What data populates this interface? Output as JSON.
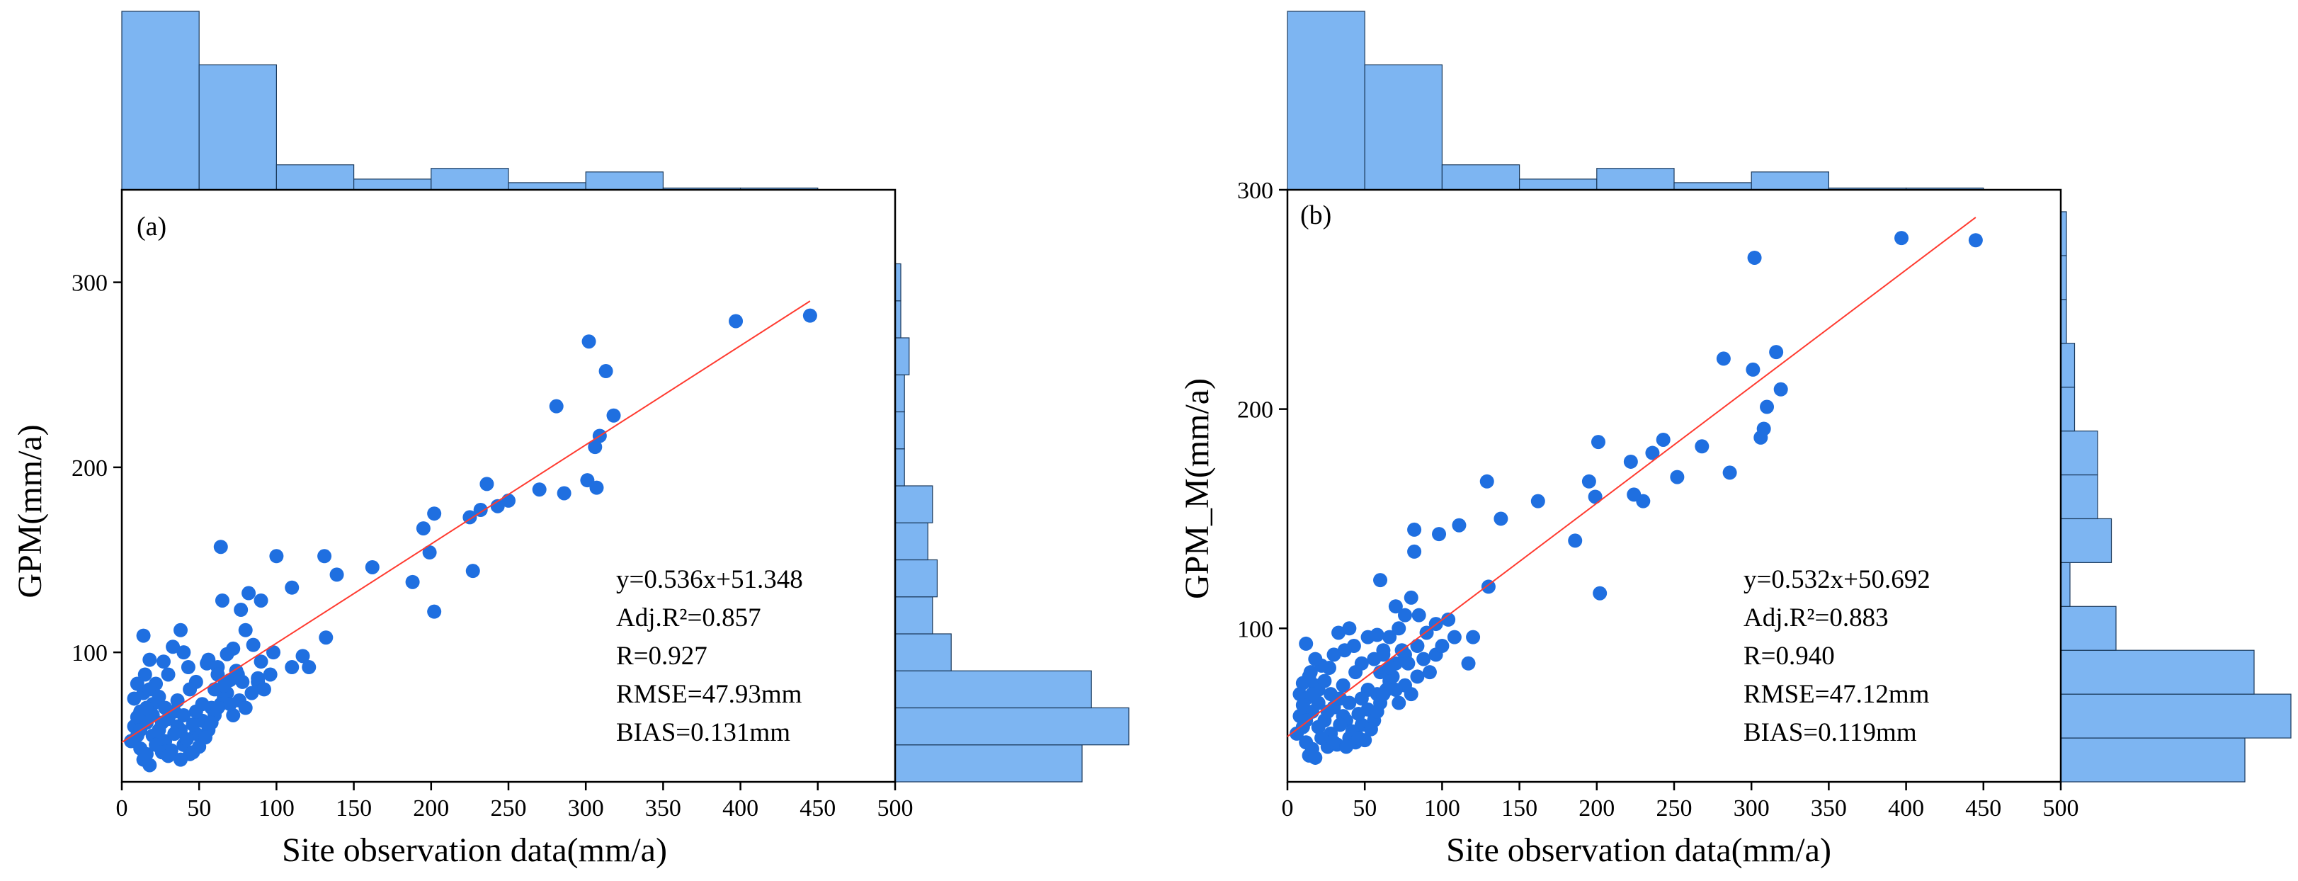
{
  "colors": {
    "point": "#1f6fe0",
    "fit_line": "#ff3b30",
    "hist_fill": "#7db5f2",
    "hist_edge": "#1b3a5c",
    "axis": "#000000"
  },
  "chart_data": [
    {
      "type": "scatter",
      "panel_label": "(a)",
      "xlabel": "Site observation data(mm/a)",
      "ylabel": "GPM(mm/a)",
      "xlim": [
        0,
        500
      ],
      "ylim": [
        30,
        350
      ],
      "xticks": [
        0,
        50,
        100,
        150,
        200,
        250,
        300,
        350,
        400,
        450,
        500
      ],
      "yticks": [
        100,
        200,
        300
      ],
      "fit": {
        "slope": 0.536,
        "intercept": 51.348,
        "x_range": [
          0,
          445
        ]
      },
      "stats": [
        "y=0.536x+51.348",
        "Adj.R²=0.857",
        "R=0.927",
        "RMSE=47.93mm",
        "BIAS=0.131mm"
      ],
      "x_hist": {
        "bin_edges": [
          0,
          50,
          100,
          150,
          200,
          250,
          300,
          350,
          400,
          450
        ],
        "counts": [
          100,
          70,
          14,
          6,
          12,
          4,
          10,
          1,
          1
        ]
      },
      "y_hist": {
        "bin_edges": [
          30,
          50,
          70,
          90,
          110,
          130,
          150,
          170,
          190,
          210,
          230,
          250,
          270,
          290,
          310
        ],
        "counts": [
          40,
          50,
          42,
          12,
          8,
          9,
          7,
          8,
          2,
          2,
          2,
          3,
          1,
          1
        ]
      },
      "points": [
        [
          445,
          282
        ],
        [
          397,
          279
        ],
        [
          302,
          268
        ],
        [
          313,
          252
        ],
        [
          281,
          233
        ],
        [
          318,
          228
        ],
        [
          309,
          217
        ],
        [
          306,
          211
        ],
        [
          236,
          191
        ],
        [
          301,
          193
        ],
        [
          307,
          189
        ],
        [
          270,
          188
        ],
        [
          286,
          186
        ],
        [
          250,
          182
        ],
        [
          243,
          179
        ],
        [
          232,
          177
        ],
        [
          225,
          173
        ],
        [
          202,
          175
        ],
        [
          195,
          167
        ],
        [
          199,
          154
        ],
        [
          188,
          138
        ],
        [
          227,
          144
        ],
        [
          202,
          122
        ],
        [
          162,
          146
        ],
        [
          139,
          142
        ],
        [
          131,
          152
        ],
        [
          110,
          135
        ],
        [
          100,
          152
        ],
        [
          82,
          132
        ],
        [
          64,
          157
        ],
        [
          90,
          128
        ],
        [
          77,
          123
        ],
        [
          65,
          128
        ],
        [
          132,
          108
        ],
        [
          117,
          98
        ],
        [
          121,
          92
        ],
        [
          110,
          92
        ],
        [
          88,
          84
        ],
        [
          90,
          95
        ],
        [
          98,
          100
        ],
        [
          85,
          104
        ],
        [
          80,
          112
        ],
        [
          72,
          102
        ],
        [
          68,
          99
        ],
        [
          55,
          94
        ],
        [
          62,
          92
        ],
        [
          70,
          85
        ],
        [
          75,
          88
        ],
        [
          60,
          80
        ],
        [
          66,
          76
        ],
        [
          58,
          70
        ],
        [
          48,
          84
        ],
        [
          43,
          92
        ],
        [
          40,
          100
        ],
        [
          33,
          103
        ],
        [
          38,
          112
        ],
        [
          30,
          88
        ],
        [
          27,
          95
        ],
        [
          22,
          83
        ],
        [
          20,
          72
        ],
        [
          18,
          96
        ],
        [
          15,
          88
        ],
        [
          14,
          109
        ],
        [
          10,
          83
        ],
        [
          8,
          75
        ],
        [
          12,
          68
        ],
        [
          16,
          62
        ],
        [
          20,
          55
        ],
        [
          24,
          58
        ],
        [
          28,
          52
        ],
        [
          32,
          47
        ],
        [
          36,
          60
        ],
        [
          40,
          50
        ],
        [
          44,
          45
        ],
        [
          48,
          56
        ],
        [
          52,
          63
        ],
        [
          56,
          58
        ],
        [
          60,
          66
        ],
        [
          64,
          72
        ],
        [
          68,
          78
        ],
        [
          72,
          66
        ],
        [
          76,
          74
        ],
        [
          80,
          70
        ],
        [
          84,
          78
        ],
        [
          88,
          86
        ],
        [
          92,
          80
        ],
        [
          96,
          88
        ],
        [
          10,
          55
        ],
        [
          12,
          48
        ],
        [
          14,
          42
        ],
        [
          16,
          45
        ],
        [
          18,
          39
        ],
        [
          22,
          50
        ],
        [
          26,
          46
        ],
        [
          30,
          64
        ],
        [
          34,
          68
        ],
        [
          38,
          58
        ],
        [
          42,
          53
        ],
        [
          46,
          61
        ],
        [
          50,
          49
        ],
        [
          54,
          54
        ],
        [
          58,
          62
        ],
        [
          62,
          88
        ],
        [
          66,
          82
        ],
        [
          70,
          72
        ],
        [
          74,
          90
        ],
        [
          78,
          84
        ],
        [
          8,
          60
        ],
        [
          10,
          65
        ],
        [
          6,
          52
        ],
        [
          14,
          78
        ],
        [
          18,
          80
        ],
        [
          24,
          76
        ],
        [
          28,
          70
        ],
        [
          36,
          74
        ],
        [
          44,
          80
        ],
        [
          52,
          72
        ],
        [
          56,
          96
        ],
        [
          62,
          70
        ],
        [
          48,
          68
        ],
        [
          40,
          66
        ],
        [
          34,
          56
        ],
        [
          26,
          62
        ],
        [
          20,
          66
        ],
        [
          16,
          70
        ],
        [
          12,
          58
        ],
        [
          30,
          44
        ],
        [
          38,
          42
        ],
        [
          46,
          46
        ]
      ]
    },
    {
      "type": "scatter",
      "panel_label": "(b)",
      "xlabel": "Site observation data(mm/a)",
      "ylabel": "GPM_M(mm/a)",
      "xlim": [
        0,
        500
      ],
      "ylim": [
        30,
        300
      ],
      "xticks": [
        0,
        50,
        100,
        150,
        200,
        250,
        300,
        350,
        400,
        450,
        500
      ],
      "yticks": [
        100,
        200,
        300
      ],
      "fit": {
        "slope": 0.532,
        "intercept": 50.692,
        "x_range": [
          0,
          445
        ]
      },
      "stats": [
        "y=0.532x+50.692",
        "Adj.R²=0.883",
        "R=0.940",
        "RMSE=47.12mm",
        "BIAS=0.119mm"
      ],
      "x_hist": {
        "bin_edges": [
          0,
          50,
          100,
          150,
          200,
          250,
          300,
          350,
          400,
          450
        ],
        "counts": [
          100,
          70,
          14,
          6,
          12,
          4,
          10,
          1,
          1
        ]
      },
      "y_hist": {
        "bin_edges": [
          30,
          50,
          70,
          90,
          110,
          130,
          150,
          170,
          190,
          210,
          230,
          250,
          270,
          290
        ],
        "counts": [
          40,
          50,
          42,
          12,
          2,
          11,
          8,
          8,
          3,
          3,
          1,
          1,
          1,
          0
        ]
      },
      "points": [
        [
          445,
          277
        ],
        [
          397,
          278
        ],
        [
          302,
          269
        ],
        [
          316,
          226
        ],
        [
          282,
          223
        ],
        [
          301,
          218
        ],
        [
          319,
          209
        ],
        [
          310,
          201
        ],
        [
          308,
          191
        ],
        [
          306,
          187
        ],
        [
          268,
          183
        ],
        [
          243,
          186
        ],
        [
          236,
          180
        ],
        [
          222,
          176
        ],
        [
          252,
          169
        ],
        [
          286,
          171
        ],
        [
          201,
          185
        ],
        [
          195,
          167
        ],
        [
          199,
          160
        ],
        [
          230,
          158
        ],
        [
          224,
          161
        ],
        [
          186,
          140
        ],
        [
          162,
          158
        ],
        [
          202,
          116
        ],
        [
          129,
          167
        ],
        [
          138,
          150
        ],
        [
          111,
          147
        ],
        [
          98,
          143
        ],
        [
          82,
          145
        ],
        [
          82,
          135
        ],
        [
          60,
          122
        ],
        [
          70,
          110
        ],
        [
          76,
          106
        ],
        [
          104,
          104
        ],
        [
          130,
          119
        ],
        [
          120,
          96
        ],
        [
          117,
          84
        ],
        [
          96,
          102
        ],
        [
          90,
          98
        ],
        [
          85,
          106
        ],
        [
          80,
          114
        ],
        [
          72,
          100
        ],
        [
          66,
          96
        ],
        [
          58,
          97
        ],
        [
          52,
          96
        ],
        [
          62,
          90
        ],
        [
          70,
          84
        ],
        [
          76,
          88
        ],
        [
          60,
          80
        ],
        [
          66,
          76
        ],
        [
          58,
          70
        ],
        [
          48,
          84
        ],
        [
          43,
          92
        ],
        [
          40,
          100
        ],
        [
          33,
          98
        ],
        [
          37,
          90
        ],
        [
          30,
          88
        ],
        [
          27,
          82
        ],
        [
          22,
          83
        ],
        [
          20,
          72
        ],
        [
          18,
          86
        ],
        [
          15,
          80
        ],
        [
          12,
          93
        ],
        [
          10,
          75
        ],
        [
          8,
          70
        ],
        [
          12,
          68
        ],
        [
          16,
          62
        ],
        [
          20,
          55
        ],
        [
          24,
          58
        ],
        [
          28,
          52
        ],
        [
          32,
          47
        ],
        [
          36,
          60
        ],
        [
          40,
          50
        ],
        [
          44,
          48
        ],
        [
          48,
          56
        ],
        [
          52,
          63
        ],
        [
          56,
          58
        ],
        [
          60,
          66
        ],
        [
          64,
          72
        ],
        [
          68,
          78
        ],
        [
          72,
          66
        ],
        [
          76,
          74
        ],
        [
          80,
          70
        ],
        [
          84,
          78
        ],
        [
          88,
          86
        ],
        [
          92,
          80
        ],
        [
          96,
          88
        ],
        [
          10,
          55
        ],
        [
          12,
          48
        ],
        [
          14,
          42
        ],
        [
          16,
          45
        ],
        [
          18,
          41
        ],
        [
          22,
          50
        ],
        [
          26,
          46
        ],
        [
          30,
          64
        ],
        [
          34,
          68
        ],
        [
          38,
          58
        ],
        [
          42,
          53
        ],
        [
          46,
          61
        ],
        [
          50,
          49
        ],
        [
          54,
          54
        ],
        [
          58,
          62
        ],
        [
          62,
          88
        ],
        [
          66,
          82
        ],
        [
          70,
          72
        ],
        [
          74,
          90
        ],
        [
          78,
          84
        ],
        [
          8,
          60
        ],
        [
          10,
          65
        ],
        [
          6,
          52
        ],
        [
          14,
          78
        ],
        [
          18,
          74
        ],
        [
          24,
          76
        ],
        [
          28,
          70
        ],
        [
          36,
          74
        ],
        [
          44,
          80
        ],
        [
          52,
          72
        ],
        [
          56,
          86
        ],
        [
          62,
          70
        ],
        [
          48,
          68
        ],
        [
          40,
          66
        ],
        [
          34,
          56
        ],
        [
          26,
          62
        ],
        [
          20,
          66
        ],
        [
          16,
          70
        ],
        [
          12,
          58
        ],
        [
          30,
          48
        ],
        [
          38,
          46
        ],
        [
          46,
          50
        ],
        [
          100,
          92
        ],
        [
          108,
          96
        ],
        [
          84,
          92
        ]
      ]
    }
  ]
}
